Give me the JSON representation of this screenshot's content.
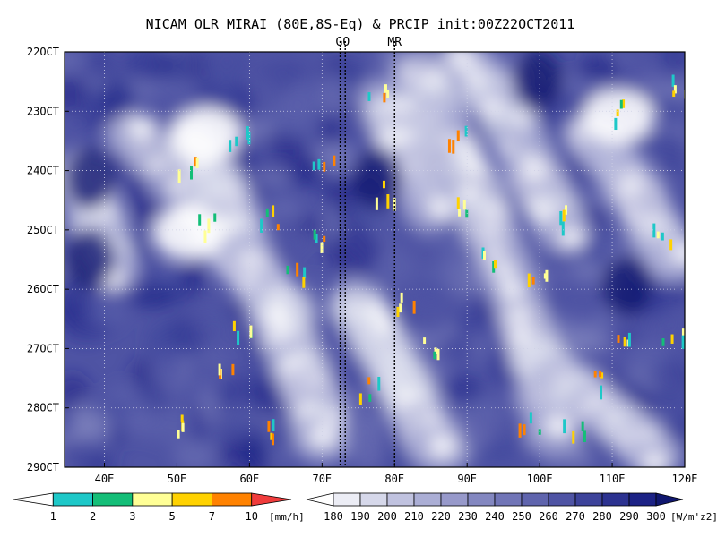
{
  "chart_data": {
    "type": "heatmap",
    "title": "NICAM OLR MIRAI (80E,8S-Eq) & PRCIP init:00Z22OCT2011",
    "x": {
      "ticks": [
        40,
        50,
        60,
        70,
        80,
        90,
        100,
        110,
        120
      ],
      "tick_labels": [
        "40E",
        "50E",
        "60E",
        "70E",
        "80E",
        "90E",
        "100E",
        "110E",
        "120E"
      ],
      "range": [
        34.5,
        120
      ]
    },
    "y": {
      "ticks": [
        22,
        23,
        24,
        25,
        26,
        27,
        28,
        29
      ],
      "tick_labels": [
        "22OCT",
        "23OCT",
        "24OCT",
        "25OCT",
        "26OCT",
        "27OCT",
        "28OCT",
        "29OCT"
      ],
      "range": [
        22,
        29
      ],
      "direction": "time increases downward"
    },
    "markers": [
      {
        "label": "GO",
        "lon": [
          72.5,
          73.2
        ],
        "color": "#e8322a"
      },
      {
        "label": "MR",
        "lon": [
          80.0
        ],
        "color": "#e8322a"
      }
    ],
    "precip_scale": {
      "unit": "[mm/h]",
      "levels": [
        "1",
        "2",
        "3",
        "5",
        "7",
        "10"
      ],
      "colors": [
        "#ffffff",
        "#1ec8c8",
        "#14be78",
        "#ffff96",
        "#ffd200",
        "#ff8200",
        "#f03c3c"
      ]
    },
    "olr_scale": {
      "unit": "[W/m^2]",
      "unit_display": "[W/m'z2]",
      "levels": [
        "180",
        "190",
        "200",
        "210",
        "220",
        "230",
        "240",
        "250",
        "260",
        "270",
        "280",
        "290",
        "300"
      ],
      "colors": [
        "#ffffff",
        "#ecedf5",
        "#d6d8ea",
        "#c0c2df",
        "#abaed5",
        "#9799ca",
        "#8387c0",
        "#7175b7",
        "#5f64ad",
        "#4f54a4",
        "#3d439a",
        "#2c3290",
        "#1c2285",
        "#10176f"
      ]
    }
  }
}
